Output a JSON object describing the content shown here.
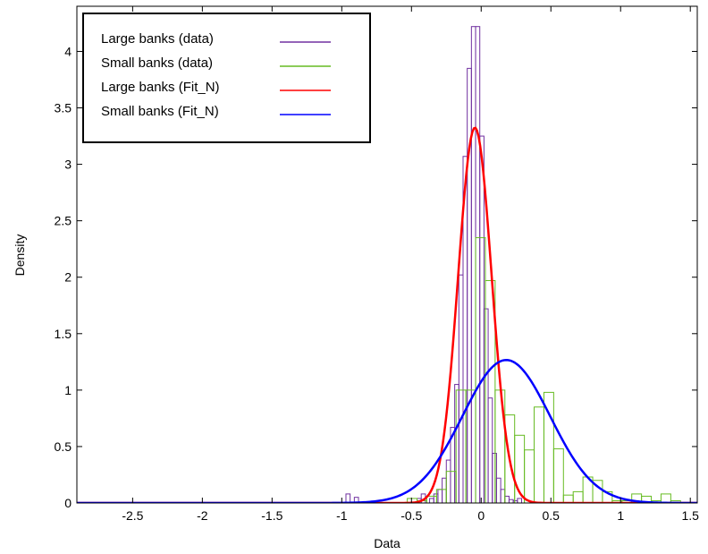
{
  "chart_data": {
    "type": "histogram",
    "xlabel": "Data",
    "ylabel": "Density",
    "xlim": [
      -2.9,
      1.55
    ],
    "ylim": [
      0,
      4.4
    ],
    "xticks": [
      -2.5,
      -2,
      -1.5,
      -1,
      -0.5,
      0,
      0.5,
      1,
      1.5
    ],
    "yticks": [
      0,
      0.5,
      1,
      1.5,
      2,
      2.5,
      3,
      3.5,
      4
    ],
    "grid": false,
    "legend_position": "top-left",
    "legend": [
      {
        "label": "Large banks (data)",
        "color": "#7030a0"
      },
      {
        "label": "Small banks (data)",
        "color": "#66bb22"
      },
      {
        "label": "Large banks (Fit_N)",
        "color": "#ff0000"
      },
      {
        "label": "Small banks (Fit_N)",
        "color": "#0000ff"
      }
    ],
    "series": [
      {
        "name": "Large banks (data)",
        "kind": "histogram",
        "color": "#7030a0",
        "bin_edges": [
          -1.0,
          -0.97,
          -0.94,
          -0.91,
          -0.88,
          -0.85,
          -0.82,
          -0.79,
          -0.76,
          -0.73,
          -0.7,
          -0.67,
          -0.64,
          -0.61,
          -0.58,
          -0.55,
          -0.52,
          -0.49,
          -0.46,
          -0.43,
          -0.4,
          -0.37,
          -0.34,
          -0.31,
          -0.28,
          -0.25,
          -0.22,
          -0.19,
          -0.16,
          -0.13,
          -0.1,
          -0.07,
          -0.04,
          -0.01,
          0.02,
          0.05,
          0.08,
          0.11,
          0.14,
          0.17,
          0.2,
          0.23,
          0.26,
          0.29
        ],
        "values": [
          0,
          0.08,
          0,
          0.05,
          0,
          0,
          0,
          0,
          0,
          0,
          0,
          0,
          0,
          0,
          0,
          0,
          0,
          0,
          0.04,
          0.08,
          0,
          0.04,
          0.08,
          0.12,
          0.22,
          0.38,
          0.67,
          1.05,
          2.02,
          3.07,
          3.85,
          4.22,
          4.22,
          3.25,
          1.72,
          0.93,
          0.44,
          0.22,
          0.12,
          0.06,
          0.03,
          0.02,
          0.04
        ]
      },
      {
        "name": "Small banks (data)",
        "kind": "histogram",
        "color": "#66bb22",
        "bin_edges": [
          -0.6,
          -0.53,
          -0.46,
          -0.39,
          -0.32,
          -0.25,
          -0.18,
          -0.11,
          -0.04,
          0.03,
          0.1,
          0.17,
          0.24,
          0.31,
          0.38,
          0.45,
          0.52,
          0.59,
          0.66,
          0.73,
          0.8,
          0.87,
          0.94,
          1.01,
          1.08,
          1.15,
          1.22,
          1.29,
          1.36,
          1.43
        ],
        "values": [
          0,
          0.04,
          0.02,
          0.06,
          0.12,
          0.28,
          1.0,
          1.0,
          2.35,
          1.97,
          1.0,
          0.78,
          0.6,
          0.47,
          0.85,
          0.98,
          0.48,
          0.07,
          0.1,
          0.23,
          0.2,
          0.1,
          0.02,
          0.02,
          0.08,
          0.06,
          0.02,
          0.08,
          0.02
        ]
      },
      {
        "name": "Large banks (Fit_N)",
        "kind": "normal_pdf",
        "color": "#ff0000",
        "mean": -0.045,
        "std": 0.12
      },
      {
        "name": "Small banks (Fit_N)",
        "kind": "normal_pdf",
        "color": "#0000ff",
        "mean": 0.18,
        "std": 0.315
      }
    ]
  }
}
